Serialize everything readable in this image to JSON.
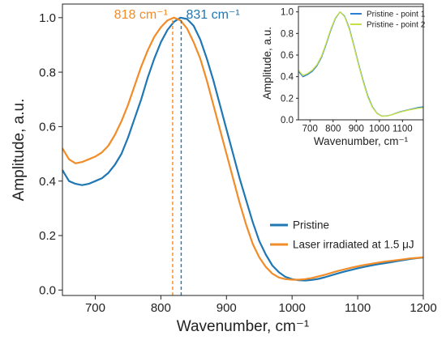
{
  "colors": {
    "pristine": "#1f77b4",
    "laser": "#f28c28",
    "inset_point1": "#2a7fd0",
    "inset_point2": "#c7e04a",
    "axis": "#222222"
  },
  "chart_data": [
    {
      "type": "line",
      "xlabel": "Wavenumber, cm⁻¹",
      "ylabel": "Amplitude, a.u.",
      "xlim": [
        650,
        1200
      ],
      "ylim": [
        -0.02,
        1.05
      ],
      "xticks": [
        700,
        800,
        900,
        1000,
        1100,
        1200
      ],
      "yticks": [
        0.0,
        0.2,
        0.4,
        0.6,
        0.8,
        1.0
      ],
      "xtick_labels": [
        "700",
        "800",
        "900",
        "1000",
        "1100",
        "1200"
      ],
      "ytick_labels": [
        "0.0",
        "0.2",
        "0.4",
        "0.6",
        "0.8",
        "1.0"
      ],
      "grid": false,
      "legend_position": "lower-right",
      "series": [
        {
          "name": "Pristine",
          "color": "#1f77b4",
          "x": [
            650,
            660,
            670,
            680,
            690,
            700,
            710,
            720,
            730,
            740,
            750,
            760,
            770,
            780,
            790,
            800,
            810,
            820,
            830,
            840,
            850,
            860,
            870,
            880,
            890,
            900,
            910,
            920,
            930,
            940,
            950,
            960,
            970,
            980,
            990,
            1000,
            1010,
            1020,
            1030,
            1040,
            1050,
            1060,
            1070,
            1080,
            1090,
            1100,
            1110,
            1120,
            1130,
            1140,
            1150,
            1160,
            1170,
            1180,
            1190,
            1200
          ],
          "y": [
            0.44,
            0.4,
            0.39,
            0.385,
            0.39,
            0.4,
            0.41,
            0.43,
            0.46,
            0.5,
            0.56,
            0.63,
            0.7,
            0.78,
            0.85,
            0.91,
            0.955,
            0.985,
            1.0,
            0.995,
            0.97,
            0.92,
            0.85,
            0.77,
            0.68,
            0.59,
            0.5,
            0.41,
            0.33,
            0.25,
            0.18,
            0.13,
            0.09,
            0.065,
            0.048,
            0.04,
            0.036,
            0.035,
            0.037,
            0.041,
            0.047,
            0.054,
            0.061,
            0.068,
            0.074,
            0.08,
            0.085,
            0.09,
            0.094,
            0.098,
            0.102,
            0.106,
            0.11,
            0.114,
            0.117,
            0.119
          ]
        },
        {
          "name": "Laser irradiated at 1.5 μJ",
          "color": "#f28c28",
          "x": [
            650,
            660,
            670,
            680,
            690,
            700,
            710,
            720,
            730,
            740,
            750,
            760,
            770,
            780,
            790,
            800,
            810,
            820,
            830,
            840,
            850,
            860,
            870,
            880,
            890,
            900,
            910,
            920,
            930,
            940,
            950,
            960,
            970,
            980,
            990,
            1000,
            1010,
            1020,
            1030,
            1040,
            1050,
            1060,
            1070,
            1080,
            1090,
            1100,
            1110,
            1120,
            1130,
            1140,
            1150,
            1160,
            1170,
            1180,
            1190,
            1200
          ],
          "y": [
            0.52,
            0.48,
            0.465,
            0.47,
            0.48,
            0.49,
            0.505,
            0.53,
            0.57,
            0.62,
            0.68,
            0.75,
            0.82,
            0.88,
            0.93,
            0.965,
            0.99,
            1.0,
            0.99,
            0.96,
            0.91,
            0.85,
            0.77,
            0.68,
            0.59,
            0.5,
            0.41,
            0.32,
            0.24,
            0.17,
            0.12,
            0.085,
            0.06,
            0.046,
            0.04,
            0.038,
            0.038,
            0.04,
            0.044,
            0.05,
            0.056,
            0.063,
            0.07,
            0.076,
            0.082,
            0.087,
            0.092,
            0.096,
            0.1,
            0.104,
            0.107,
            0.11,
            0.113,
            0.116,
            0.118,
            0.12
          ]
        }
      ],
      "annotations": [
        {
          "label": "818 cm⁻¹",
          "x": 818,
          "color": "#f28c28",
          "style": "dashed"
        },
        {
          "label": "831 cm⁻¹",
          "x": 831,
          "color": "#1f77b4",
          "style": "dashed"
        }
      ]
    },
    {
      "type": "line",
      "xlabel": "Wavenumber, cm⁻¹",
      "ylabel": "Amplitude, a.u.",
      "xlim": [
        650,
        1190
      ],
      "ylim": [
        0.0,
        1.05
      ],
      "xticks": [
        700,
        800,
        900,
        1000,
        1100
      ],
      "yticks": [
        0.0,
        0.2,
        0.4,
        0.6,
        0.8,
        1.0
      ],
      "xtick_labels": [
        "700",
        "800",
        "900",
        "1000",
        "1100"
      ],
      "ytick_labels": [
        "0.0",
        "0.2",
        "0.4",
        "0.6",
        "0.8",
        "1.0"
      ],
      "grid": false,
      "legend_position": "top-right",
      "series": [
        {
          "name": "Pristine - point 1",
          "color": "#2a7fd0",
          "x": [
            650,
            670,
            690,
            710,
            730,
            750,
            770,
            790,
            810,
            830,
            850,
            870,
            890,
            910,
            930,
            950,
            970,
            990,
            1010,
            1030,
            1050,
            1070,
            1090,
            1110,
            1130,
            1150,
            1170,
            1190
          ],
          "y": [
            0.45,
            0.4,
            0.42,
            0.45,
            0.5,
            0.58,
            0.7,
            0.83,
            0.94,
            1.0,
            0.96,
            0.85,
            0.69,
            0.52,
            0.36,
            0.22,
            0.12,
            0.06,
            0.035,
            0.035,
            0.045,
            0.06,
            0.075,
            0.085,
            0.095,
            0.105,
            0.115,
            0.12
          ]
        },
        {
          "name": "Pristine - point 2",
          "color": "#c7e04a",
          "x": [
            650,
            670,
            690,
            710,
            730,
            750,
            770,
            790,
            810,
            830,
            850,
            870,
            890,
            910,
            930,
            950,
            970,
            990,
            1010,
            1030,
            1050,
            1070,
            1090,
            1110,
            1130,
            1150,
            1170,
            1190
          ],
          "y": [
            0.46,
            0.41,
            0.43,
            0.46,
            0.51,
            0.59,
            0.71,
            0.84,
            0.945,
            1.0,
            0.955,
            0.84,
            0.68,
            0.51,
            0.35,
            0.21,
            0.115,
            0.058,
            0.034,
            0.034,
            0.044,
            0.058,
            0.072,
            0.082,
            0.092,
            0.1,
            0.108,
            0.112
          ]
        }
      ]
    }
  ]
}
